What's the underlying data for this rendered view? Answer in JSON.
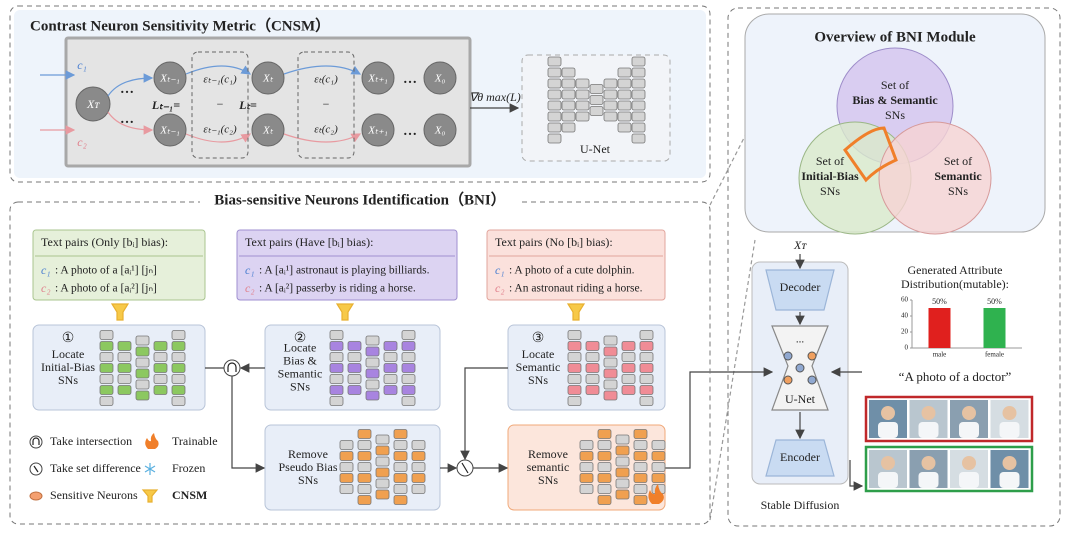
{
  "cnsm": {
    "title": "Contrast Neuron Sensitivity Metric（CNSM）",
    "prompts": [
      "c₁",
      "c₂"
    ],
    "start_node": "Xᴛ",
    "nodes_top": [
      "Xₜ₋₁",
      "Xₜ",
      "Xₜ₊₁",
      "X₀"
    ],
    "nodes_bottom": [
      "Xₜ₋₁",
      "Xₜ",
      "Xₜ₊₁",
      "X₀"
    ],
    "loss_labels": [
      "Lₜ₋₁=",
      "Lₜ="
    ],
    "eps_top": [
      "εₜ₋₁(c₁)",
      "εₜ(c₁)"
    ],
    "eps_bottom": [
      "εₜ₋₁(c₂)",
      "εₜ(c₂)"
    ],
    "minus": "−",
    "ellipsis": "…",
    "gradient": "∇θ max(L)",
    "unet": "U-Net"
  },
  "overview": {
    "title": "Overview of BNI Module",
    "sets": [
      {
        "lines": [
          "Set of",
          "Bias & Semantic",
          "SNs"
        ]
      },
      {
        "lines": [
          "Set of",
          "Initial-Bias",
          "SNs"
        ]
      },
      {
        "lines": [
          "Set of",
          "Semantic",
          "SNs"
        ]
      }
    ]
  },
  "bni": {
    "title": "Bias-sensitive Neurons Identification（BNI）",
    "text_pairs": [
      {
        "header": "Text pairs (Only [bᵢ] bias):",
        "lines": [
          {
            "label": "c₁",
            "text": ":  A photo of a [aᵢ¹] [jₙ]"
          },
          {
            "label": "c₂",
            "text": ":  A photo of a [aᵢ²] [jₙ]"
          }
        ]
      },
      {
        "header": "Text pairs (Have [bᵢ] bias):",
        "lines": [
          {
            "label": "c₁",
            "text": ": A [aᵢ¹] astronaut is playing billiards."
          },
          {
            "label": "c₂",
            "text": ": A [aᵢ²] passerby is riding a horse."
          }
        ]
      },
      {
        "header": "Text pairs (No [bᵢ] bias):",
        "lines": [
          {
            "label": "c₁",
            "text": ": A photo of a cute dolphin."
          },
          {
            "label": "c₂",
            "text": ": An astronaut riding a horse."
          }
        ]
      }
    ],
    "modules": [
      {
        "number": "①",
        "lines": [
          "Locate",
          "Initial-Bias",
          "SNs"
        ]
      },
      {
        "number": "②",
        "lines": [
          "Locate",
          "Bias &",
          "Semantic",
          "SNs"
        ]
      },
      {
        "number": "③",
        "lines": [
          "Locate",
          "Semantic",
          "SNs"
        ]
      }
    ],
    "removes": [
      {
        "lines": [
          "Remove",
          "Pseudo Bias",
          "SNs"
        ]
      },
      {
        "lines": [
          "Remove",
          "semantic",
          "SNs"
        ]
      }
    ],
    "legend": [
      "Take intersection",
      "Trainable",
      "Take set difference",
      "Frozen",
      "Sensitive Neurons",
      "CNSM"
    ]
  },
  "stable_diffusion": {
    "input": "Xᴛ",
    "decoder": "Decoder",
    "unet": "U-Net",
    "encoder": "Encoder",
    "label": "Stable Diffusion",
    "ellipsis": "..."
  },
  "chart_data": {
    "type": "bar",
    "title": [
      "Generated Attribute",
      "Distribution(mutable):"
    ],
    "categories": [
      "male",
      "female"
    ],
    "values": [
      50,
      50
    ],
    "value_labels": [
      "50%",
      "50%"
    ],
    "colors": [
      "#e0201e",
      "#2fb24f"
    ],
    "ylim": [
      0,
      60
    ],
    "yticks": [
      0,
      20,
      40,
      60
    ],
    "caption": "“A photo of a doctor”"
  }
}
